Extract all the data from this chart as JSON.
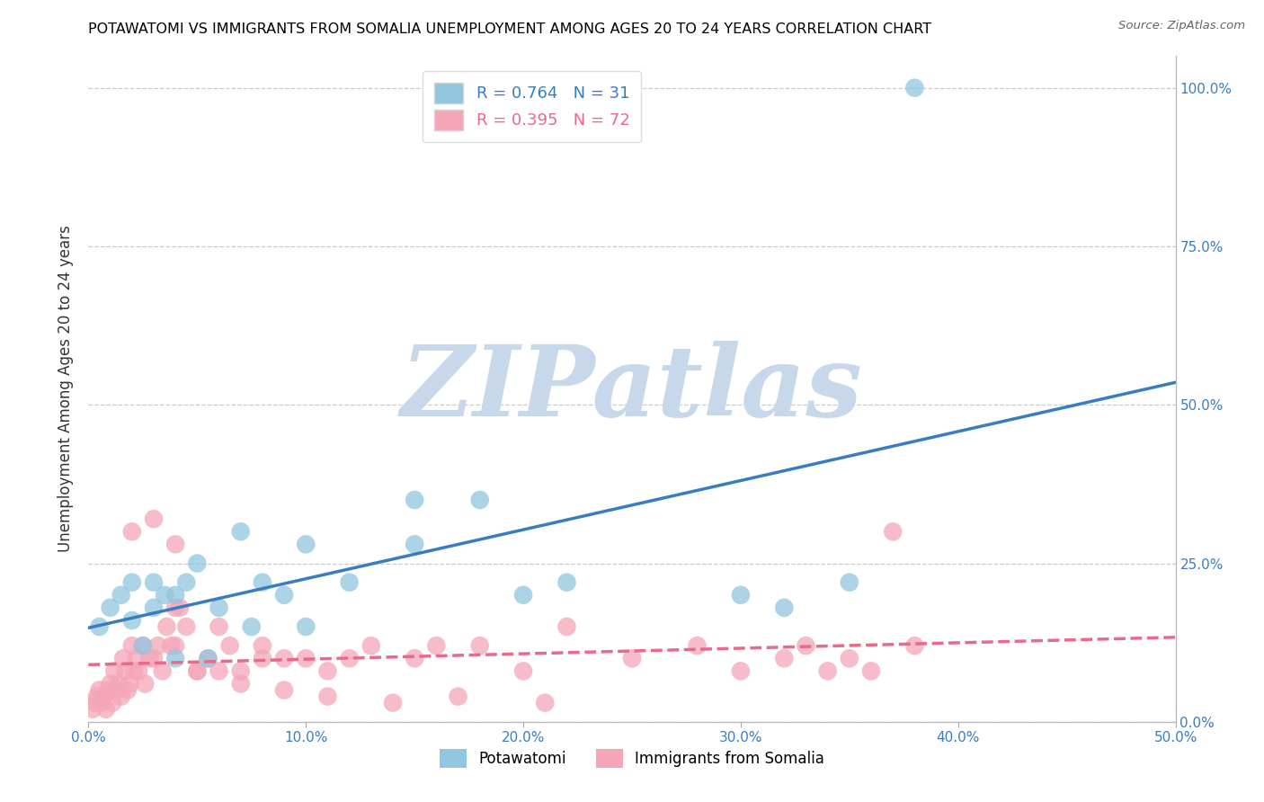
{
  "title": "POTAWATOMI VS IMMIGRANTS FROM SOMALIA UNEMPLOYMENT AMONG AGES 20 TO 24 YEARS CORRELATION CHART",
  "source": "Source: ZipAtlas.com",
  "ylabel": "Unemployment Among Ages 20 to 24 years",
  "blue_R": 0.764,
  "blue_N": 31,
  "pink_R": 0.395,
  "pink_N": 72,
  "blue_color": "#92c5de",
  "pink_color": "#f4a6b8",
  "blue_line_color": "#3a7dbf",
  "pink_line_color": "#e8698a",
  "legend_blue_label": "Potawatomi",
  "legend_pink_label": "Immigrants from Somalia",
  "watermark": "ZIPatlas",
  "watermark_color": "#c8d8eb",
  "blue_scatter_x": [
    0.005,
    0.01,
    0.015,
    0.02,
    0.02,
    0.025,
    0.03,
    0.03,
    0.035,
    0.04,
    0.04,
    0.045,
    0.05,
    0.055,
    0.06,
    0.07,
    0.075,
    0.08,
    0.09,
    0.1,
    0.1,
    0.12,
    0.15,
    0.15,
    0.18,
    0.2,
    0.22,
    0.3,
    0.32,
    0.35,
    0.38
  ],
  "blue_scatter_y": [
    0.15,
    0.18,
    0.2,
    0.22,
    0.16,
    0.12,
    0.18,
    0.22,
    0.2,
    0.1,
    0.2,
    0.22,
    0.25,
    0.1,
    0.18,
    0.3,
    0.15,
    0.22,
    0.2,
    0.15,
    0.28,
    0.22,
    0.28,
    0.35,
    0.35,
    0.2,
    0.22,
    0.2,
    0.18,
    0.22,
    1.0
  ],
  "pink_scatter_x": [
    0.002,
    0.003,
    0.004,
    0.005,
    0.006,
    0.007,
    0.008,
    0.009,
    0.01,
    0.011,
    0.012,
    0.013,
    0.014,
    0.015,
    0.016,
    0.017,
    0.018,
    0.019,
    0.02,
    0.021,
    0.022,
    0.023,
    0.025,
    0.026,
    0.028,
    0.03,
    0.032,
    0.034,
    0.036,
    0.038,
    0.04,
    0.042,
    0.045,
    0.05,
    0.055,
    0.06,
    0.065,
    0.07,
    0.08,
    0.09,
    0.1,
    0.11,
    0.12,
    0.13,
    0.15,
    0.16,
    0.18,
    0.2,
    0.22,
    0.25,
    0.28,
    0.3,
    0.32,
    0.33,
    0.34,
    0.35,
    0.36,
    0.37,
    0.38,
    0.02,
    0.03,
    0.04,
    0.05,
    0.07,
    0.09,
    0.11,
    0.14,
    0.17,
    0.21,
    0.04,
    0.06,
    0.08
  ],
  "pink_scatter_y": [
    0.02,
    0.03,
    0.04,
    0.05,
    0.03,
    0.04,
    0.02,
    0.05,
    0.06,
    0.03,
    0.08,
    0.05,
    0.06,
    0.04,
    0.1,
    0.08,
    0.05,
    0.06,
    0.12,
    0.08,
    0.1,
    0.08,
    0.12,
    0.06,
    0.1,
    0.1,
    0.12,
    0.08,
    0.15,
    0.12,
    0.12,
    0.18,
    0.15,
    0.08,
    0.1,
    0.08,
    0.12,
    0.08,
    0.1,
    0.1,
    0.1,
    0.08,
    0.1,
    0.12,
    0.1,
    0.12,
    0.12,
    0.08,
    0.15,
    0.1,
    0.12,
    0.08,
    0.1,
    0.12,
    0.08,
    0.1,
    0.08,
    0.3,
    0.12,
    0.3,
    0.32,
    0.28,
    0.08,
    0.06,
    0.05,
    0.04,
    0.03,
    0.04,
    0.03,
    0.18,
    0.15,
    0.12
  ],
  "xlim": [
    0.0,
    0.5
  ],
  "ylim": [
    0.0,
    1.05
  ],
  "xticks": [
    0.0,
    0.1,
    0.2,
    0.3,
    0.4,
    0.5
  ],
  "xticklabels": [
    "0.0%",
    "10.0%",
    "20.0%",
    "30.0%",
    "40.0%",
    "50.0%"
  ],
  "right_yticks": [
    0.0,
    0.25,
    0.5,
    0.75,
    1.0
  ],
  "right_yticklabels": [
    "0.0%",
    "25.0%",
    "50.0%",
    "75.0%",
    "100.0%"
  ]
}
